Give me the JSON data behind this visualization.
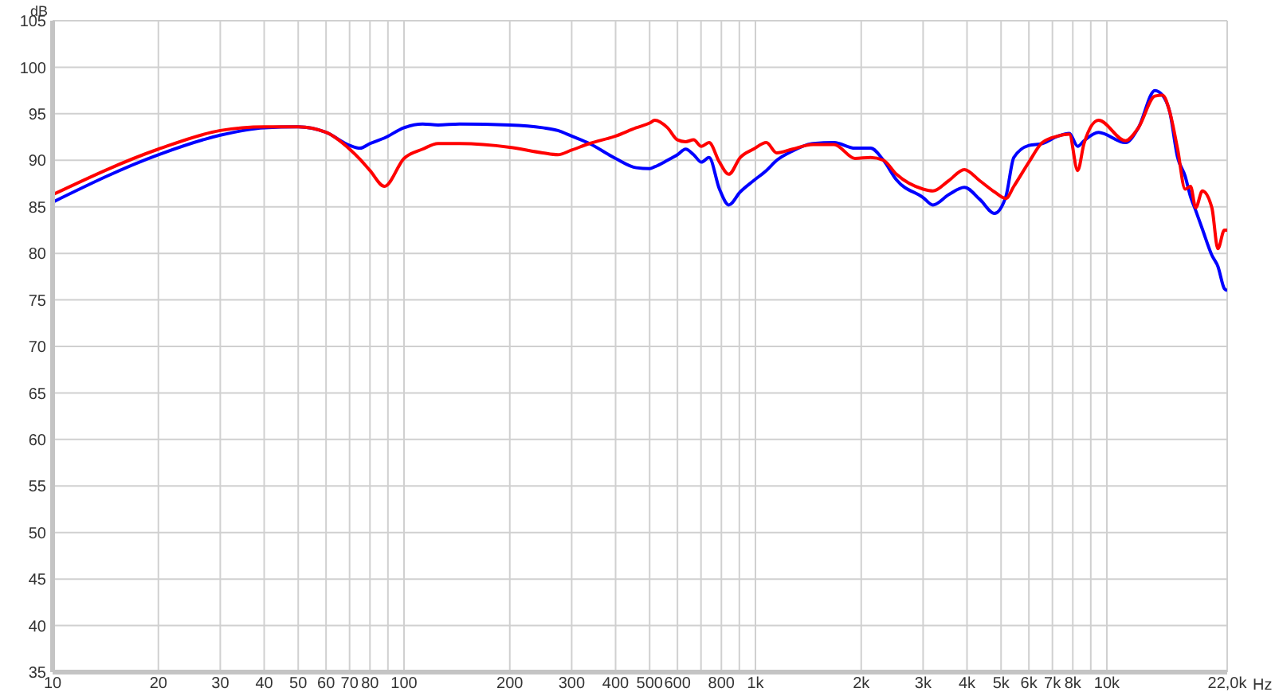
{
  "chart_data": {
    "type": "line",
    "ylabel": "dB",
    "xlabel": "Hz",
    "log": "x",
    "grid": true,
    "xlim": [
      10,
      22000
    ],
    "xticks": [
      10,
      20,
      30,
      40,
      50,
      60,
      70,
      80,
      {
        "value": 90,
        "label": null
      },
      100,
      200,
      300,
      400,
      500,
      600,
      {
        "value": 700,
        "label": null
      },
      800,
      {
        "value": 900,
        "label": null
      },
      {
        "value": 1000,
        "label": "1k"
      },
      {
        "value": 2000,
        "label": "2k"
      },
      {
        "value": 3000,
        "label": "3k"
      },
      {
        "value": 4000,
        "label": "4k"
      },
      {
        "value": 5000,
        "label": "5k"
      },
      {
        "value": 6000,
        "label": "6k"
      },
      {
        "value": 7000,
        "label": "7k"
      },
      {
        "value": 8000,
        "label": "8k"
      },
      {
        "value": 9000,
        "label": null
      },
      {
        "value": 10000,
        "label": "10k"
      },
      {
        "value": 22000,
        "label": "22,0k"
      }
    ],
    "ylim": [
      35,
      105
    ],
    "yticks": [
      35,
      40,
      45,
      50,
      55,
      60,
      65,
      70,
      75,
      80,
      85,
      90,
      95,
      100,
      105
    ],
    "x": [
      10,
      20,
      30,
      40,
      50,
      60,
      70,
      75,
      80,
      88,
      100,
      113,
      125,
      144,
      200,
      248,
      274,
      300,
      337,
      400,
      458,
      500,
      517,
      562,
      600,
      633,
      667,
      702,
      738,
      790,
      840,
      905,
      987,
      1074,
      1150,
      1275,
      1459,
      1674,
      1920,
      2127,
      2314,
      2519,
      3000,
      3200,
      3545,
      3930,
      4350,
      4790,
      5160,
      5436,
      6000,
      6550,
      7260,
      7820,
      8260,
      8610,
      9470,
      11300,
      12300,
      13700,
      14400,
      15100,
      15900,
      16700,
      17300,
      17900,
      18700,
      19900,
      20700,
      21600,
      22000
    ],
    "series": [
      {
        "color": "#0000ff",
        "values": [
          85.5,
          90.6,
          92.7,
          93.5,
          93.6,
          93.0,
          91.6,
          91.3,
          91.8,
          92.4,
          93.5,
          93.9,
          93.8,
          93.9,
          93.8,
          93.5,
          93.2,
          92.6,
          91.8,
          90.2,
          89.2,
          89.1,
          89.3,
          90.0,
          90.6,
          91.2,
          90.6,
          89.8,
          90.3,
          86.9,
          85.2,
          86.6,
          87.8,
          88.9,
          90.0,
          91.0,
          91.8,
          91.9,
          91.3,
          91.3,
          90.0,
          87.9,
          86.0,
          85.2,
          86.3,
          87.1,
          85.8,
          84.3,
          86.1,
          90.3,
          91.6,
          91.8,
          92.6,
          92.9,
          91.5,
          92.1,
          93.0,
          91.9,
          93.5,
          97.5,
          97.0,
          95.2,
          90.3,
          88.3,
          86.1,
          84.6,
          82.6,
          79.8,
          78.6,
          76.2,
          76.0
        ]
      },
      {
        "color": "#ff0000",
        "values": [
          86.3,
          91.2,
          93.2,
          93.6,
          93.6,
          93.0,
          91.2,
          90.1,
          88.9,
          87.2,
          90.2,
          91.2,
          91.8,
          91.8,
          91.4,
          90.8,
          90.6,
          91.1,
          91.8,
          92.6,
          93.5,
          94.0,
          94.3,
          93.5,
          92.2,
          92.0,
          92.2,
          91.5,
          91.9,
          89.8,
          88.5,
          90.3,
          91.2,
          91.9,
          90.8,
          91.2,
          91.7,
          91.7,
          90.2,
          90.3,
          90.0,
          88.5,
          86.9,
          86.7,
          87.8,
          89.0,
          87.8,
          86.6,
          85.9,
          87.2,
          89.8,
          91.9,
          92.6,
          92.8,
          88.9,
          91.8,
          94.3,
          92.1,
          93.5,
          96.9,
          97.0,
          95.2,
          91.2,
          86.9,
          87.2,
          84.9,
          86.7,
          84.9,
          80.5,
          82.5,
          82.5
        ]
      }
    ]
  }
}
